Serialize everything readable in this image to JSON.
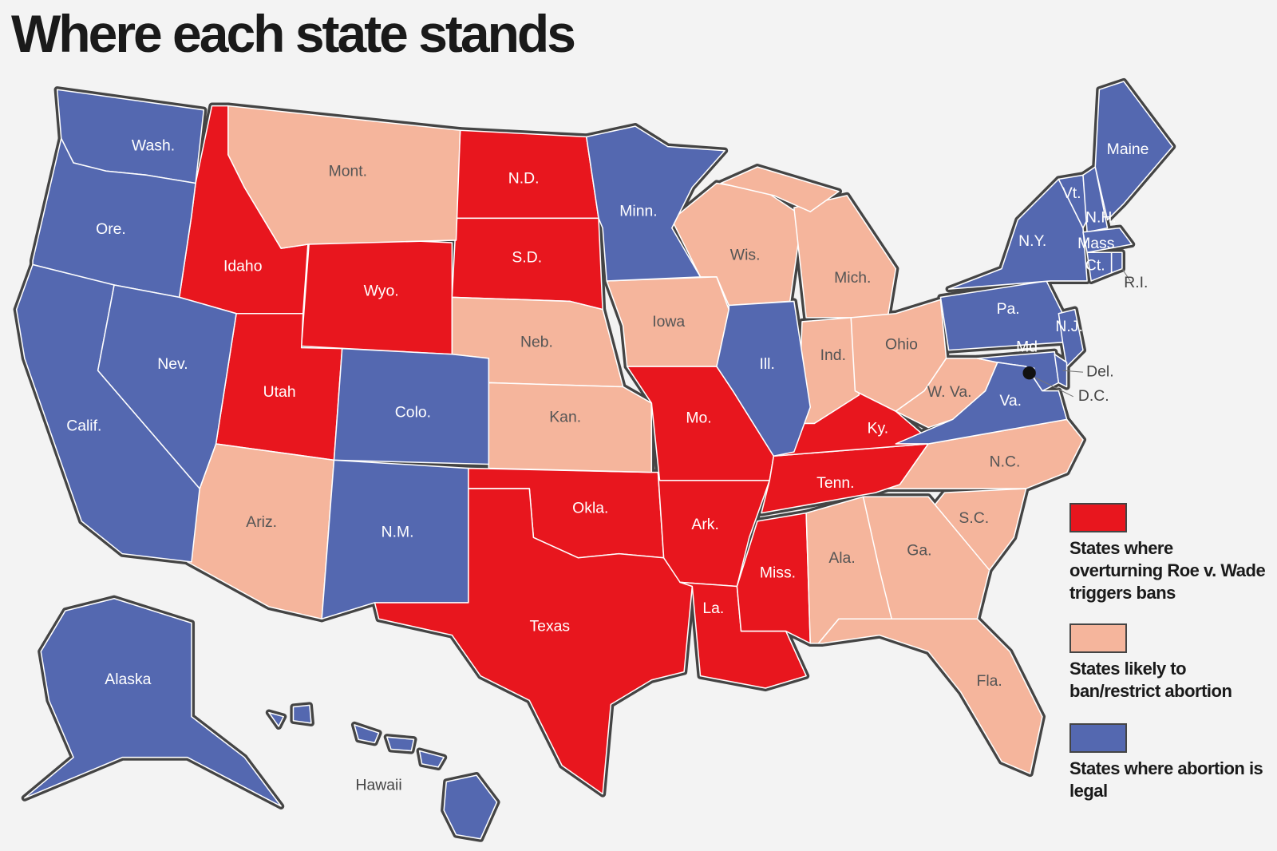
{
  "header": {
    "title": "Where each state stands"
  },
  "legend": [
    {
      "label": "States where overturning Roe v. Wade triggers bans",
      "color": "#e8161e",
      "states": [
        "Idaho",
        "Wyo.",
        "Utah",
        "N.D.",
        "S.D.",
        "Mo.",
        "Okla.",
        "Texas",
        "Ark.",
        "La.",
        "Miss.",
        "Tenn.",
        "Ky."
      ]
    },
    {
      "label": "States likely to ban/restrict abortion",
      "color": "#f5b59c",
      "states": [
        "Mont.",
        "Wis.",
        "Mich.",
        "Iowa",
        "Neb.",
        "Kan.",
        "Ind.",
        "Ohio",
        "W. Va.",
        "Ariz.",
        "N.C.",
        "S.C.",
        "Ala.",
        "Ga.",
        "Fla."
      ]
    },
    {
      "label": "States where abortion is legal",
      "color": "#5468b0",
      "states": [
        "Wash.",
        "Ore.",
        "Calif.",
        "Nev.",
        "Colo.",
        "N.M.",
        "Minn.",
        "Ill.",
        "Pa.",
        "N.Y.",
        "Vt.",
        "N.H.",
        "Maine",
        "Mass",
        "Ct.",
        "R.I.",
        "N.J.",
        "Md",
        "Del.",
        "D.C.",
        "Va.",
        "Alaska",
        "Hawaii"
      ]
    }
  ]
}
